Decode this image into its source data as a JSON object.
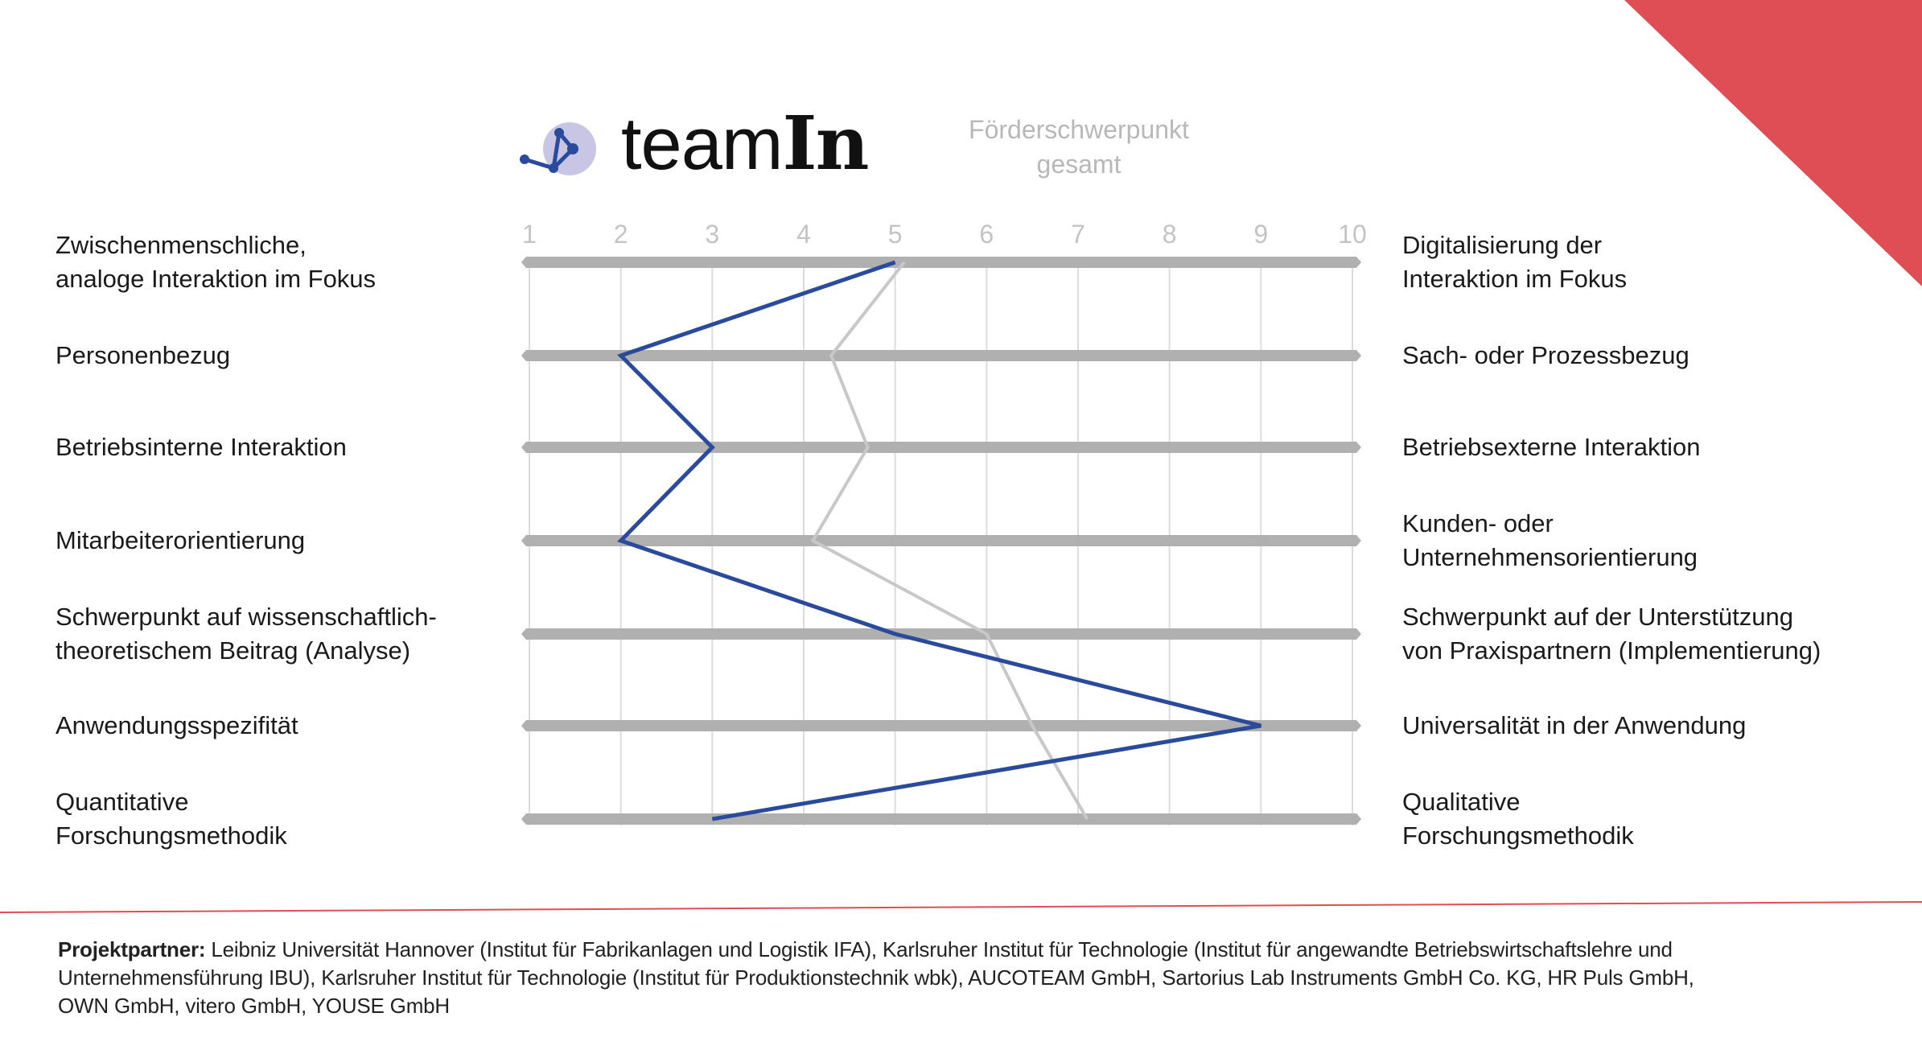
{
  "colors": {
    "accent_red": "#e04e55",
    "series_blue": "#2a4b9b",
    "series_grey": "#c8c8c8",
    "bar_grey": "#b0b0b0",
    "grid": "#dcdcdc",
    "logo_circle": "#c9c5e4"
  },
  "logo": {
    "text_light": "team",
    "text_bold": "In"
  },
  "legend": {
    "grey_series_label_line1": "Förderschwerpunkt",
    "grey_series_label_line2": "gesamt"
  },
  "chart_data": {
    "type": "line",
    "orientation": "horizontal-profile",
    "xlim": [
      1,
      10
    ],
    "x_ticks": [
      "1",
      "2",
      "3",
      "4",
      "5",
      "6",
      "7",
      "8",
      "9",
      "10"
    ],
    "grid": true,
    "rows": [
      {
        "left": [
          "Zwischenmenschliche,",
          "analoge Interaktion im Fokus"
        ],
        "right": [
          "Digitalisierung der",
          "Interaktion im Fokus"
        ]
      },
      {
        "left": [
          "Personenbezug"
        ],
        "right": [
          "Sach- oder Prozessbezug"
        ]
      },
      {
        "left": [
          "Betriebsinterne Interaktion"
        ],
        "right": [
          "Betriebsexterne Interaktion"
        ]
      },
      {
        "left": [
          "Mitarbeiterorientierung"
        ],
        "right": [
          "Kunden- oder",
          "Unternehmensorientierung"
        ]
      },
      {
        "left": [
          "Schwerpunkt auf wissenschaftlich-",
          "theoretischem Beitrag (Analyse)"
        ],
        "right": [
          "Schwerpunkt auf der Unterstützung",
          "von Praxispartnern (Implementierung)"
        ]
      },
      {
        "left": [
          "Anwendungsspezifität"
        ],
        "right": [
          "Universalität in der Anwendung"
        ]
      },
      {
        "left": [
          "Quantitative",
          "Forschungsmethodik"
        ],
        "right": [
          "Qualitative",
          "Forschungsmethodik"
        ]
      }
    ],
    "series": [
      {
        "name": "Förderschwerpunkt gesamt",
        "color": "#c8c8c8",
        "values": [
          5.1,
          4.3,
          4.7,
          4.1,
          6.0,
          6.5,
          7.1
        ]
      },
      {
        "color": "#2a4b9b",
        "values": [
          5,
          2,
          3,
          2,
          5,
          9,
          3
        ]
      }
    ]
  },
  "footer": {
    "label": "Projektpartner:",
    "line1": " Leibniz Universität Hannover (Institut für Fabrikanlagen und Logistik IFA), Karlsruher Institut für Technologie (Institut für angewandte Betriebswirtschaftslehre und",
    "line2": "Unternehmensführung IBU), Karlsruher Institut für Technologie (Institut für Produktionstechnik wbk), AUCOTEAM GmbH, Sartorius Lab Instruments GmbH Co. KG, HR Puls GmbH,",
    "line3": "OWN GmbH, vitero GmbH, YOUSE GmbH"
  }
}
